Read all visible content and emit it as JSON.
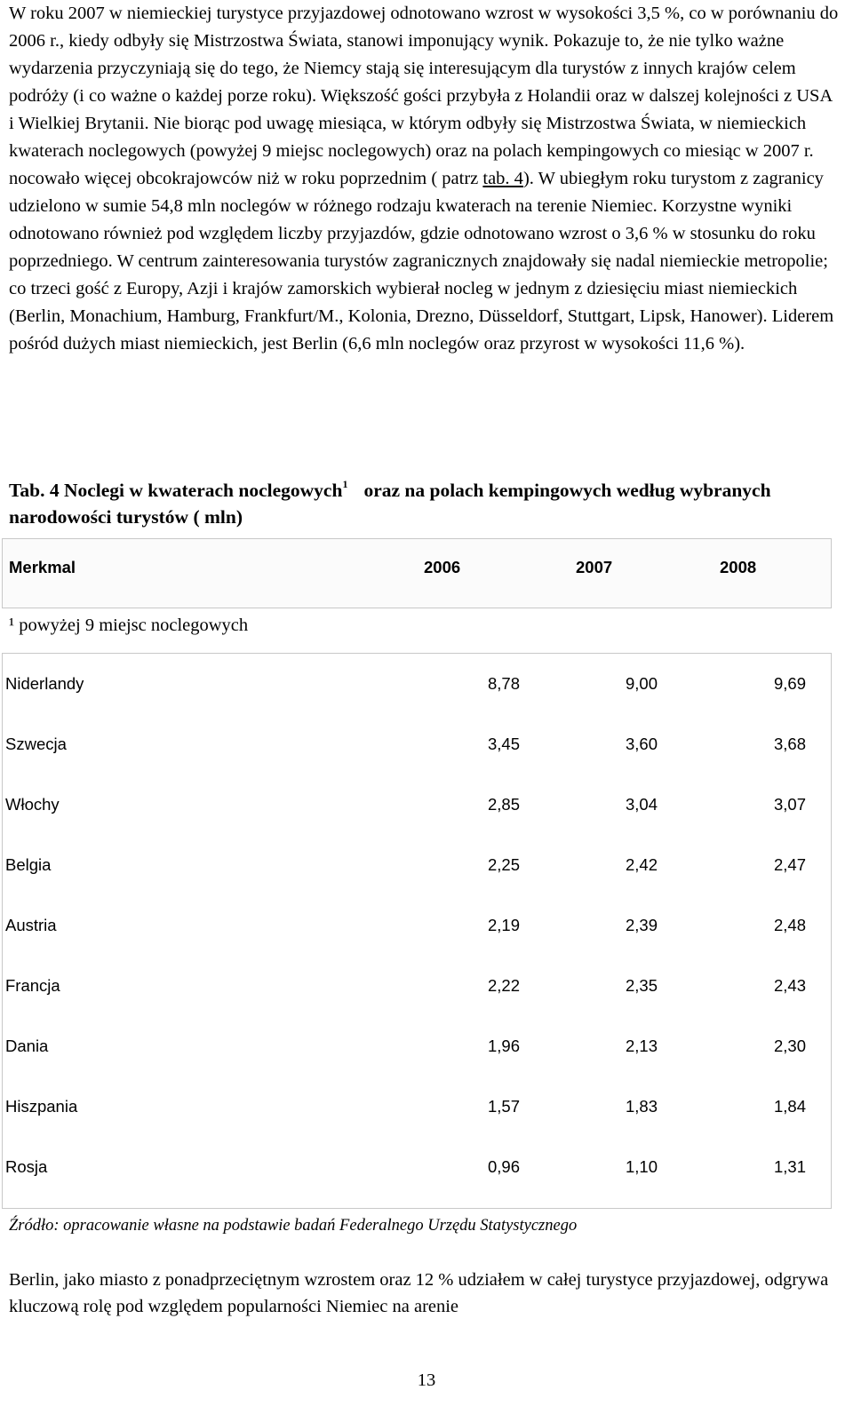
{
  "intro_paragraph": {
    "part1": "W roku 2007 w niemieckiej turystyce przyjazdowej odnotowano wzrost w wysokości 3,5 %, co w porównaniu do 2006 r., kiedy odbyły się Mistrzostwa Świata, stanowi imponujący wynik. Pokazuje to, że nie tylko ważne wydarzenia przyczyniają się do tego, że Niemcy stają się interesującym dla turystów z innych krajów celem podróży (i co ważne o każdej porze roku). Większość gości przybyła z Holandii oraz w dalszej kolejności z USA i Wielkiej Brytanii. Nie biorąc pod uwagę miesiąca, w którym odbyły się Mistrzostwa Świata, w niemieckich kwaterach noclegowych (powyżej 9 miejsc noclegowych) oraz na polach kempingowych co miesiąc w 2007 r. nocowało więcej obcokrajowców niż w roku poprzednim ( patrz ",
    "link_text": "tab. 4",
    "part2": "). W ubiegłym roku turystom z zagranicy udzielono w sumie 54,8 mln noclegów w różnego rodzaju kwaterach na terenie Niemiec. Korzystne wyniki odnotowano również pod względem liczby przyjazdów, gdzie odnotowano wzrost o 3,6 % w stosunku do roku poprzedniego. W centrum zainteresowania turystów zagranicznych znajdowały się nadal niemieckie metropolie; co trzeci gość z Europy, Azji i krajów zamorskich  wybierał nocleg w jednym z dziesięciu miast  niemieckich (Berlin, Monachium, Hamburg, Frankfurt/M., Kolonia, Drezno, Düsseldorf, Stuttgart, Lipsk, Hanower). Liderem pośród dużych miast niemieckich, jest Berlin (6,6 mln noclegów oraz przyrost w wysokości 11,6 %)."
  },
  "table_title": {
    "part1": "Tab. 4 Noclegi w kwaterach noclegowych",
    "sup": "1",
    "part2": "oraz na polach kempingowych według wybranych narodowości turystów ( mln)"
  },
  "table_header": {
    "label": "Merkmal",
    "years": [
      "2006",
      "2007",
      "2008"
    ]
  },
  "footnote": "¹ powyżej 9 miejsc noclegowych",
  "table_rows": [
    {
      "country": "Niderlandy",
      "v2006": "8,78",
      "v2007": "9,00",
      "v2008": "9,69"
    },
    {
      "country": "Szwecja",
      "v2006": "3,45",
      "v2007": "3,60",
      "v2008": "3,68"
    },
    {
      "country": "Włochy",
      "v2006": "2,85",
      "v2007": "3,04",
      "v2008": "3,07"
    },
    {
      "country": "Belgia",
      "v2006": "2,25",
      "v2007": "2,42",
      "v2008": "2,47"
    },
    {
      "country": "Austria",
      "v2006": "2,19",
      "v2007": "2,39",
      "v2008": "2,48"
    },
    {
      "country": "Francja",
      "v2006": "2,22",
      "v2007": "2,35",
      "v2008": "2,43"
    },
    {
      "country": "Dania",
      "v2006": "1,96",
      "v2007": "2,13",
      "v2008": "2,30"
    },
    {
      "country": "Hiszpania",
      "v2006": "1,57",
      "v2007": "1,83",
      "v2008": "1,84"
    },
    {
      "country": "Rosja",
      "v2006": "0,96",
      "v2007": "1,10",
      "v2008": "1,31"
    }
  ],
  "source": "Źródło: opracowanie własne na podstawie badań Federalnego Urzędu Statystycznego",
  "closing_paragraph": "Berlin, jako miasto z ponadprzeciętnym wzrostem oraz 12 % udziałem w całej turystyce przyjazdowej, odgrywa kluczową rolę pod względem popularności Niemiec na arenie",
  "page_number": "13"
}
